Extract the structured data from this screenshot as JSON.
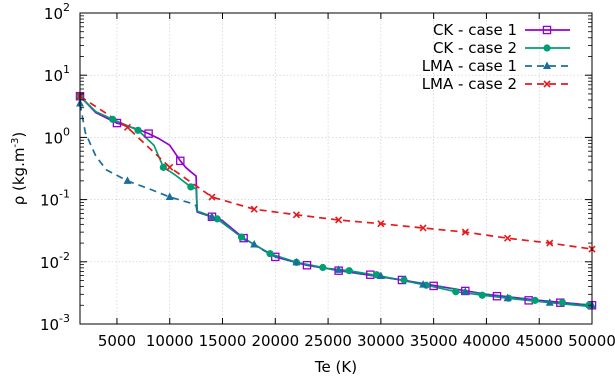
{
  "chart_data": {
    "type": "line",
    "xlabel": "Te (K)",
    "ylabel": "ρ (kg.m",
    "ylabel_sup": "-3",
    "ylabel_close": ")",
    "x_scale": "linear",
    "y_scale": "log",
    "xlim": [
      1500,
      50000
    ],
    "ylim": [
      0.001,
      100
    ],
    "x_ticks": [
      5000,
      10000,
      15000,
      20000,
      25000,
      30000,
      35000,
      40000,
      45000,
      50000
    ],
    "y_ticks": [
      {
        "value": 0.001,
        "base": "10",
        "exp": "-3"
      },
      {
        "value": 0.01,
        "base": "10",
        "exp": "-2"
      },
      {
        "value": 0.1,
        "base": "10",
        "exp": "-1"
      },
      {
        "value": 1,
        "base": "10",
        "exp": "0"
      },
      {
        "value": 10,
        "base": "10",
        "exp": "1"
      },
      {
        "value": 100,
        "base": "10",
        "exp": "2"
      }
    ],
    "grid": true,
    "legend_position": "top-right",
    "series": [
      {
        "name": "CK - case 1",
        "color": "#9400d3",
        "dash": "solid",
        "marker": "square",
        "x": [
          1500,
          3000,
          5000,
          7000,
          8000,
          9000,
          10000,
          11000,
          11500,
          12000,
          12500,
          12600,
          13000,
          14000,
          15000,
          17000,
          20000,
          23000,
          27000,
          32000,
          36000,
          40000,
          45000,
          50000
        ],
        "y": [
          4.6,
          2.5,
          1.7,
          1.35,
          1.15,
          0.95,
          0.75,
          0.42,
          0.33,
          0.28,
          0.24,
          0.063,
          0.06,
          0.053,
          0.046,
          0.024,
          0.012,
          0.0088,
          0.0068,
          0.0051,
          0.0039,
          0.003,
          0.0024,
          0.002
        ],
        "marker_x": [
          1500,
          5000,
          8000,
          11000,
          14000,
          17000,
          20000,
          23000,
          26000,
          29000,
          32000,
          35000,
          38000,
          41000,
          44000,
          47000,
          50000
        ],
        "marker_y": [
          4.6,
          1.7,
          1.15,
          0.42,
          0.053,
          0.024,
          0.012,
          0.0088,
          0.0072,
          0.0062,
          0.0051,
          0.0041,
          0.0034,
          0.0028,
          0.0024,
          0.0022,
          0.002
        ]
      },
      {
        "name": "CK - case 2",
        "color": "#009e73",
        "dash": "solid",
        "marker": "circle",
        "x": [
          1500,
          3000,
          4600,
          7000,
          8500,
          9400,
          10500,
          12000,
          12500,
          12600,
          13000,
          14500,
          16800,
          19500,
          22000,
          25000,
          27000,
          30000,
          34300,
          37100,
          39600,
          42000,
          46000,
          50000
        ],
        "y": [
          4.6,
          2.6,
          1.95,
          1.3,
          0.75,
          0.33,
          0.25,
          0.16,
          0.15,
          0.065,
          0.062,
          0.049,
          0.025,
          0.0135,
          0.0098,
          0.0078,
          0.0072,
          0.0059,
          0.0042,
          0.0033,
          0.0029,
          0.0026,
          0.0022,
          0.0019
        ],
        "marker_x": [
          1500,
          4600,
          7000,
          9400,
          12000,
          14500,
          16800,
          19500,
          22000,
          24500,
          27000,
          29600,
          32200,
          34300,
          37100,
          39600,
          42100,
          44600,
          47200,
          49700
        ],
        "marker_y": [
          4.6,
          1.95,
          1.3,
          0.33,
          0.16,
          0.049,
          0.025,
          0.0135,
          0.0098,
          0.0081,
          0.0072,
          0.0062,
          0.0051,
          0.0042,
          0.0033,
          0.0029,
          0.0026,
          0.0024,
          0.0022,
          0.002
        ]
      },
      {
        "name": "LMA - case 1",
        "color": "#1a6e9c",
        "dash": "dashed",
        "marker": "triangle",
        "x": [
          1500,
          2000,
          3000,
          4000,
          6000,
          8000,
          10000,
          12000,
          12500,
          12600,
          13000,
          14000,
          15000,
          17000,
          20000,
          23000,
          27000,
          32000,
          36000,
          40000,
          45000,
          50000
        ],
        "y": [
          3.5,
          1.2,
          0.5,
          0.3,
          0.2,
          0.15,
          0.11,
          0.088,
          0.08,
          0.063,
          0.06,
          0.053,
          0.045,
          0.023,
          0.012,
          0.0088,
          0.0068,
          0.0051,
          0.0039,
          0.003,
          0.0024,
          0.002
        ],
        "marker_x": [
          1500,
          6000,
          10000,
          14000,
          18000,
          22000,
          26000,
          30000,
          34000,
          38000,
          42000,
          46000,
          50000
        ],
        "marker_y": [
          3.5,
          0.2,
          0.11,
          0.053,
          0.019,
          0.0098,
          0.0074,
          0.0059,
          0.0043,
          0.0033,
          0.0026,
          0.0022,
          0.002
        ]
      },
      {
        "name": "LMA - case 2",
        "color": "#e41a1c",
        "dash": "dashed",
        "marker": "x",
        "x": [
          1500,
          6000,
          10000,
          14000,
          18000,
          22000,
          26000,
          30000,
          34000,
          38000,
          42000,
          46000,
          50000
        ],
        "y": [
          4.6,
          1.45,
          0.33,
          0.11,
          0.07,
          0.057,
          0.047,
          0.041,
          0.035,
          0.03,
          0.024,
          0.02,
          0.016
        ],
        "marker_x": [
          1500,
          6000,
          10000,
          14000,
          18000,
          22000,
          26000,
          30000,
          34000,
          38000,
          42000,
          46000,
          50000
        ],
        "marker_y": [
          4.6,
          1.45,
          0.33,
          0.11,
          0.07,
          0.057,
          0.047,
          0.041,
          0.035,
          0.03,
          0.024,
          0.02,
          0.016
        ]
      }
    ]
  }
}
